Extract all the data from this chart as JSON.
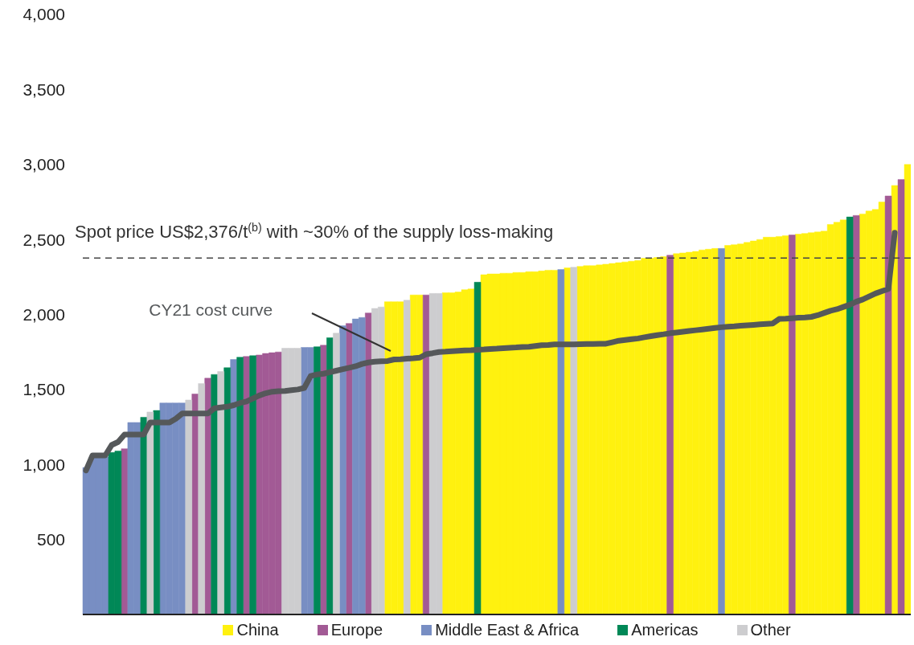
{
  "chart_data": {
    "type": "bar",
    "tick_labels": "y",
    "legend": "bottom",
    "ylim": [
      0,
      4000
    ],
    "categories": [
      null,
      null,
      null,
      null,
      null,
      null,
      null,
      null,
      null,
      null,
      null,
      null,
      null,
      null,
      null,
      null,
      null,
      null,
      null,
      null,
      null,
      null,
      null,
      null,
      null,
      null,
      null,
      null,
      null,
      null,
      null,
      null,
      null,
      null,
      null,
      null,
      null,
      null,
      null,
      null,
      null,
      null,
      null,
      null,
      null,
      null,
      null,
      null,
      null,
      null,
      null,
      null,
      null,
      null,
      null,
      null,
      null,
      null,
      null,
      null,
      null,
      null,
      null,
      null,
      null,
      null,
      null,
      null,
      null,
      null,
      null,
      null,
      null,
      null,
      null,
      null,
      null,
      null,
      null,
      null,
      null,
      null,
      null,
      null,
      null,
      null,
      null,
      null,
      null,
      null,
      null,
      null,
      null,
      null,
      null,
      null,
      null,
      null,
      null,
      null,
      null,
      null,
      null,
      null,
      null,
      null,
      null,
      null,
      null,
      null,
      null,
      null,
      null,
      null,
      null,
      null,
      null,
      null,
      null,
      null,
      null,
      null,
      null,
      null,
      null,
      null,
      null,
      null,
      null
    ],
    "yticks": [
      {
        "value": 500,
        "label": "500"
      },
      {
        "value": 1000,
        "label": "1,000"
      },
      {
        "value": 1500,
        "label": "1,500"
      },
      {
        "value": 2000,
        "label": "2,000"
      },
      {
        "value": 2500,
        "label": "2,500"
      },
      {
        "value": 3000,
        "label": "3,000"
      },
      {
        "value": 3500,
        "label": "3,500"
      },
      {
        "value": 4000,
        "label": "4,000"
      }
    ],
    "series": [
      {
        "name": "China",
        "color": "#fff10f",
        "values": [
          null,
          null,
          null,
          null,
          null,
          null,
          null,
          null,
          null,
          null,
          null,
          null,
          null,
          null,
          null,
          null,
          null,
          null,
          null,
          null,
          null,
          null,
          null,
          null,
          null,
          null,
          null,
          null,
          null,
          null,
          null,
          null,
          null,
          null,
          null,
          null,
          null,
          null,
          null,
          null,
          null,
          null,
          null,
          null,
          null,
          null,
          null,
          2085,
          2085,
          2085,
          null,
          2130,
          2130,
          null,
          null,
          null,
          2145,
          2145,
          2150,
          2165,
          2170,
          null,
          2265,
          2270,
          2270,
          2275,
          2275,
          2280,
          2280,
          2285,
          2285,
          2290,
          2295,
          2295,
          null,
          2310,
          null,
          2320,
          2325,
          2325,
          2330,
          2335,
          2340,
          2345,
          2350,
          2355,
          2360,
          2375,
          2375,
          2380,
          2385,
          null,
          2405,
          2410,
          2415,
          2420,
          2430,
          2435,
          2440,
          null,
          2460,
          2465,
          2470,
          2480,
          2490,
          2500,
          2515,
          2515,
          2520,
          2525,
          null,
          2535,
          2540,
          2545,
          2550,
          2555,
          2600,
          2615,
          2630,
          null,
          null,
          2670,
          2690,
          2700,
          2750,
          null,
          2860,
          null,
          3000
        ]
      },
      {
        "name": "Europe",
        "color": "#a25a95",
        "values": [
          null,
          null,
          null,
          null,
          null,
          null,
          1105,
          null,
          null,
          null,
          null,
          null,
          null,
          null,
          null,
          null,
          null,
          1470,
          null,
          1575,
          null,
          null,
          null,
          null,
          null,
          1720,
          null,
          1730,
          1740,
          1745,
          1750,
          null,
          null,
          null,
          null,
          null,
          null,
          1795,
          null,
          null,
          null,
          1940,
          null,
          null,
          2010,
          null,
          null,
          null,
          null,
          null,
          null,
          null,
          null,
          2130,
          null,
          null,
          null,
          null,
          null,
          null,
          null,
          null,
          null,
          null,
          null,
          null,
          null,
          null,
          null,
          null,
          null,
          null,
          null,
          null,
          null,
          null,
          null,
          null,
          null,
          null,
          null,
          null,
          null,
          null,
          null,
          null,
          null,
          null,
          null,
          null,
          null,
          2395,
          null,
          null,
          null,
          null,
          null,
          null,
          null,
          null,
          null,
          null,
          null,
          null,
          null,
          null,
          null,
          null,
          null,
          null,
          2530,
          null,
          null,
          null,
          null,
          null,
          null,
          null,
          null,
          null,
          2660,
          null,
          null,
          null,
          null,
          2790,
          null,
          2900,
          null
        ]
      },
      {
        "name": "Middle East & Africa",
        "color": "#788ec3",
        "values": [
          980,
          1050,
          1050,
          1050,
          null,
          null,
          null,
          1280,
          1280,
          null,
          null,
          null,
          1410,
          1410,
          1410,
          1410,
          null,
          null,
          null,
          null,
          null,
          null,
          null,
          1700,
          null,
          null,
          null,
          null,
          null,
          null,
          null,
          null,
          null,
          null,
          1780,
          1780,
          null,
          null,
          null,
          null,
          1925,
          null,
          1970,
          1980,
          null,
          null,
          null,
          null,
          null,
          null,
          null,
          null,
          null,
          null,
          null,
          null,
          null,
          null,
          null,
          null,
          null,
          null,
          null,
          null,
          null,
          null,
          null,
          null,
          null,
          null,
          null,
          null,
          null,
          null,
          2300,
          null,
          null,
          null,
          null,
          null,
          null,
          null,
          null,
          null,
          null,
          null,
          null,
          null,
          null,
          null,
          null,
          null,
          null,
          null,
          null,
          null,
          null,
          null,
          null,
          2440,
          null,
          null,
          null,
          null,
          null,
          null,
          null,
          null,
          null,
          null,
          null,
          null,
          null,
          null,
          null,
          null,
          null,
          null,
          null,
          null,
          null,
          null,
          null,
          null,
          null,
          null,
          null,
          null,
          null
        ]
      },
      {
        "name": "Americas",
        "color": "#008857",
        "values": [
          null,
          null,
          null,
          null,
          1080,
          1090,
          null,
          null,
          null,
          1315,
          null,
          1360,
          null,
          null,
          null,
          null,
          null,
          null,
          null,
          null,
          1600,
          null,
          1645,
          null,
          1715,
          null,
          1725,
          null,
          null,
          null,
          null,
          null,
          null,
          null,
          null,
          null,
          1785,
          null,
          1845,
          null,
          null,
          null,
          null,
          null,
          null,
          null,
          null,
          null,
          null,
          null,
          null,
          null,
          null,
          null,
          null,
          null,
          null,
          null,
          null,
          null,
          null,
          2215,
          null,
          null,
          null,
          null,
          null,
          null,
          null,
          null,
          null,
          null,
          null,
          null,
          null,
          null,
          null,
          null,
          null,
          null,
          null,
          null,
          null,
          null,
          null,
          null,
          null,
          null,
          null,
          null,
          null,
          null,
          null,
          null,
          null,
          null,
          null,
          null,
          null,
          null,
          null,
          null,
          null,
          null,
          null,
          null,
          null,
          null,
          null,
          null,
          null,
          null,
          null,
          null,
          null,
          null,
          null,
          null,
          null,
          2650,
          null,
          null,
          null,
          null,
          null,
          null,
          null,
          null,
          null
        ]
      },
      {
        "name": "Other",
        "color": "#cdcdcf",
        "values": [
          null,
          null,
          null,
          null,
          null,
          null,
          null,
          null,
          null,
          null,
          1350,
          null,
          null,
          null,
          null,
          null,
          1430,
          null,
          1540,
          null,
          null,
          1620,
          null,
          null,
          null,
          null,
          null,
          null,
          null,
          null,
          null,
          1775,
          1775,
          1775,
          null,
          null,
          null,
          null,
          null,
          1875,
          null,
          null,
          null,
          null,
          null,
          2040,
          2050,
          null,
          null,
          null,
          2095,
          null,
          null,
          null,
          2140,
          2140,
          null,
          null,
          null,
          null,
          null,
          null,
          null,
          null,
          null,
          null,
          null,
          null,
          null,
          null,
          null,
          null,
          null,
          null,
          null,
          null,
          2315,
          null,
          null,
          null,
          null,
          null,
          null,
          null,
          null,
          null,
          null,
          null,
          null,
          null,
          null,
          null,
          null,
          null,
          null,
          null,
          null,
          null,
          null,
          null,
          null,
          null,
          null,
          null,
          null,
          null,
          null,
          null,
          null,
          null,
          null,
          null,
          null,
          null,
          null,
          null,
          null,
          null,
          null,
          null,
          null,
          null,
          null,
          null,
          null,
          null,
          null,
          null,
          null
        ]
      },
      {
        "name": "CY21 cost curve",
        "type": "line",
        "color": "#55585a",
        "values": [
          960,
          1060,
          1060,
          1060,
          1130,
          1150,
          1200,
          1200,
          1200,
          1200,
          1280,
          1280,
          1280,
          1280,
          1305,
          1340,
          1340,
          1340,
          1340,
          1340,
          1375,
          1380,
          1385,
          1395,
          1410,
          1420,
          1440,
          1460,
          1475,
          1485,
          1488,
          1490,
          1495,
          1500,
          1510,
          1590,
          1600,
          1605,
          1615,
          1625,
          1635,
          1645,
          1655,
          1670,
          1680,
          1685,
          1688,
          1690,
          1700,
          1702,
          1705,
          1708,
          1712,
          1735,
          1742,
          1750,
          1752,
          1755,
          1758,
          1760,
          1762,
          1765,
          1767,
          1770,
          1772,
          1775,
          1778,
          1780,
          1783,
          1785,
          1790,
          1795,
          1797,
          1800,
          1800,
          1801,
          1801,
          1802,
          1803,
          1803,
          1804,
          1805,
          1815,
          1825,
          1830,
          1835,
          1840,
          1848,
          1855,
          1862,
          1868,
          1875,
          1880,
          1885,
          1890,
          1895,
          1900,
          1905,
          1910,
          1915,
          1918,
          1921,
          1925,
          1928,
          1931,
          1934,
          1937,
          1940,
          1970,
          1972,
          1975,
          1978,
          1980,
          1984,
          1995,
          2010,
          2025,
          2035,
          2050,
          2065,
          2085,
          2100,
          2120,
          2140,
          2155,
          2170,
          2545,
          null,
          null
        ]
      }
    ],
    "ref_lines": [
      {
        "axis": "y",
        "value": 2376,
        "label": "Spot price US$2,376/t$^{(b)}$ with ~30% of the supply loss-making",
        "color": "#444444",
        "line_style": "dashed"
      }
    ]
  }
}
